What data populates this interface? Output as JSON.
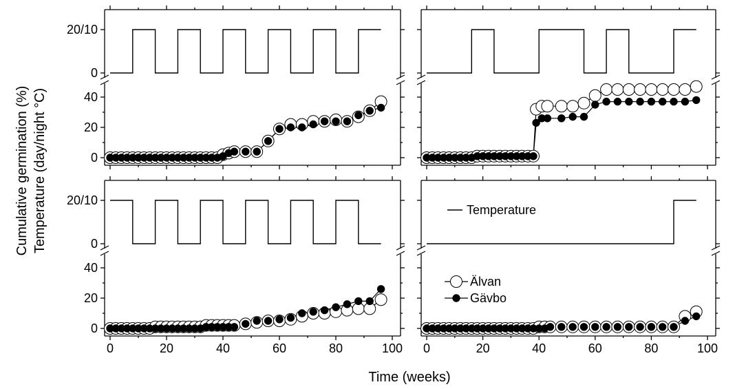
{
  "figure": {
    "ylabel_line1": "Cumulative germination (%)",
    "ylabel_line2": "Temperature (day/night °C)",
    "xlabel": "Time (weeks)"
  },
  "chart_data": {
    "type": "line",
    "x_ticks": [
      0,
      20,
      40,
      60,
      80,
      100
    ],
    "xlim": [
      0,
      100
    ],
    "temp_ticks": [
      "0",
      "20/10"
    ],
    "germ_ticks": [
      0,
      20,
      40
    ],
    "germ_ylim": [
      0,
      50
    ],
    "legend": {
      "temperature_label": "Temperature",
      "alvan_label": "Älvan",
      "gavbo_label": "Gävbo"
    },
    "panels": [
      {
        "name": "top-left",
        "temperature": {
          "x": [
            0,
            8,
            8,
            16,
            16,
            24,
            24,
            32,
            32,
            40,
            40,
            48,
            48,
            56,
            56,
            64,
            64,
            72,
            72,
            80,
            80,
            88,
            88,
            96
          ],
          "y": [
            0,
            0,
            1,
            1,
            0,
            0,
            1,
            1,
            0,
            0,
            1,
            1,
            0,
            0,
            1,
            1,
            0,
            0,
            1,
            1,
            0,
            0,
            1,
            1
          ]
        },
        "series": [
          {
            "name": "Älvan",
            "x": [
              0,
              2,
              4,
              6,
              8,
              10,
              12,
              14,
              16,
              18,
              20,
              22,
              24,
              26,
              28,
              30,
              32,
              34,
              36,
              38,
              40,
              42,
              44,
              48,
              52,
              56,
              60,
              64,
              68,
              72,
              76,
              80,
              84,
              88,
              92,
              96
            ],
            "y": [
              0,
              0,
              0,
              0,
              0,
              0,
              0,
              0,
              0,
              0,
              0,
              0,
              0,
              0,
              0,
              0,
              0,
              0,
              0,
              0,
              2,
              3,
              4,
              4,
              4,
              11,
              19,
              22,
              22,
              24,
              24,
              25,
              24,
              27,
              31,
              37
            ]
          },
          {
            "name": "Gävbo",
            "x": [
              0,
              2,
              4,
              6,
              8,
              10,
              12,
              14,
              16,
              18,
              20,
              22,
              24,
              26,
              28,
              30,
              32,
              34,
              36,
              38,
              40,
              42,
              44,
              48,
              52,
              56,
              60,
              64,
              68,
              72,
              76,
              80,
              84,
              88,
              92,
              96
            ],
            "y": [
              0,
              0,
              0,
              0,
              0,
              0,
              0,
              0,
              0,
              0,
              0,
              0,
              0,
              0,
              0,
              0,
              0,
              0,
              0,
              0,
              1,
              3,
              4,
              4,
              4,
              11,
              19,
              20,
              20,
              22,
              24,
              24,
              24,
              28,
              31,
              33
            ]
          }
        ]
      },
      {
        "name": "top-right",
        "temperature": {
          "x": [
            0,
            16,
            16,
            24,
            24,
            40,
            40,
            56,
            56,
            64,
            64,
            72,
            72,
            88,
            88,
            96
          ],
          "y": [
            0,
            0,
            1,
            1,
            0,
            0,
            1,
            1,
            0,
            0,
            1,
            1,
            0,
            0,
            1,
            1
          ]
        },
        "series": [
          {
            "name": "Älvan",
            "x": [
              0,
              2,
              4,
              6,
              8,
              10,
              12,
              14,
              16,
              18,
              20,
              22,
              24,
              26,
              28,
              30,
              32,
              34,
              36,
              38,
              39,
              41,
              43,
              48,
              52,
              56,
              60,
              64,
              68,
              72,
              76,
              80,
              84,
              88,
              92,
              96
            ],
            "y": [
              0,
              0,
              0,
              0,
              0,
              0,
              0,
              0,
              0,
              1,
              1,
              1,
              1,
              1,
              1,
              1,
              1,
              1,
              1,
              1,
              32,
              34,
              34,
              34,
              34,
              36,
              41,
              45,
              45,
              45,
              45,
              45,
              45,
              45,
              45,
              47
            ]
          },
          {
            "name": "Gävbo",
            "x": [
              0,
              2,
              4,
              6,
              8,
              10,
              12,
              14,
              16,
              18,
              20,
              22,
              24,
              26,
              28,
              30,
              32,
              34,
              36,
              38,
              39,
              41,
              43,
              48,
              52,
              56,
              60,
              64,
              68,
              72,
              76,
              80,
              84,
              88,
              92,
              96
            ],
            "y": [
              0,
              0,
              0,
              0,
              0,
              0,
              0,
              0,
              0,
              1,
              1,
              1,
              1,
              1,
              1,
              1,
              1,
              1,
              1,
              1,
              23,
              26,
              26,
              26,
              27,
              27,
              35,
              37,
              37,
              37,
              37,
              37,
              37,
              37,
              37,
              38
            ]
          }
        ]
      },
      {
        "name": "bottom-left",
        "temperature": {
          "x": [
            0,
            8,
            8,
            16,
            16,
            24,
            24,
            32,
            32,
            40,
            40,
            48,
            48,
            56,
            56,
            64,
            64,
            72,
            72,
            80,
            80,
            88,
            88,
            96
          ],
          "y": [
            1,
            1,
            0,
            0,
            1,
            1,
            0,
            0,
            1,
            1,
            0,
            0,
            1,
            1,
            0,
            0,
            1,
            1,
            0,
            0,
            1,
            1,
            0,
            0
          ]
        },
        "series": [
          {
            "name": "Älvan",
            "x": [
              0,
              2,
              4,
              6,
              8,
              10,
              12,
              14,
              16,
              18,
              20,
              22,
              24,
              26,
              28,
              30,
              32,
              34,
              36,
              38,
              40,
              42,
              44,
              48,
              52,
              56,
              60,
              64,
              68,
              72,
              76,
              80,
              84,
              88,
              92,
              96
            ],
            "y": [
              0,
              0,
              0,
              0,
              0,
              0,
              0,
              0,
              1,
              1,
              1,
              1,
              1,
              1,
              1,
              1,
              1,
              2,
              2,
              2,
              2,
              2,
              2,
              3,
              4,
              5,
              5,
              6,
              8,
              10,
              10,
              11,
              12,
              13,
              13,
              19
            ]
          },
          {
            "name": "Gävbo",
            "x": [
              0,
              2,
              4,
              6,
              8,
              10,
              12,
              14,
              16,
              18,
              20,
              22,
              24,
              26,
              28,
              30,
              32,
              34,
              36,
              38,
              40,
              42,
              44,
              48,
              52,
              56,
              60,
              64,
              68,
              72,
              76,
              80,
              84,
              88,
              92,
              96
            ],
            "y": [
              0,
              0,
              0,
              0,
              0,
              0,
              0,
              0,
              0,
              0,
              0,
              0,
              0,
              0,
              0,
              0,
              0,
              1,
              1,
              1,
              1,
              1,
              1,
              3,
              5,
              5,
              6,
              7,
              10,
              11,
              12,
              14,
              16,
              18,
              18,
              26
            ]
          }
        ]
      },
      {
        "name": "bottom-right",
        "temperature": {
          "x": [
            0,
            88,
            88,
            96
          ],
          "y": [
            0,
            0,
            1,
            1
          ]
        },
        "series": [
          {
            "name": "Älvan",
            "x": [
              0,
              2,
              4,
              6,
              8,
              10,
              12,
              14,
              16,
              18,
              20,
              22,
              24,
              26,
              28,
              30,
              32,
              34,
              36,
              38,
              40,
              42,
              44,
              48,
              52,
              56,
              60,
              64,
              68,
              72,
              76,
              80,
              84,
              88,
              92,
              96
            ],
            "y": [
              0,
              0,
              0,
              0,
              0,
              0,
              0,
              0,
              0,
              0,
              0,
              0,
              0,
              0,
              0,
              0,
              0,
              0,
              0,
              0,
              1,
              1,
              1,
              1,
              1,
              1,
              1,
              1,
              1,
              1,
              1,
              1,
              1,
              1,
              8,
              11
            ]
          },
          {
            "name": "Gävbo",
            "x": [
              0,
              2,
              4,
              6,
              8,
              10,
              12,
              14,
              16,
              18,
              20,
              22,
              24,
              26,
              28,
              30,
              32,
              34,
              36,
              38,
              40,
              42,
              44,
              48,
              52,
              56,
              60,
              64,
              68,
              72,
              76,
              80,
              84,
              88,
              92,
              96
            ],
            "y": [
              0,
              0,
              0,
              0,
              0,
              0,
              0,
              0,
              0,
              0,
              0,
              0,
              0,
              0,
              0,
              0,
              0,
              0,
              0,
              0,
              0,
              0,
              1,
              1,
              1,
              1,
              1,
              1,
              1,
              1,
              1,
              1,
              1,
              1,
              5,
              8
            ]
          }
        ]
      }
    ]
  }
}
